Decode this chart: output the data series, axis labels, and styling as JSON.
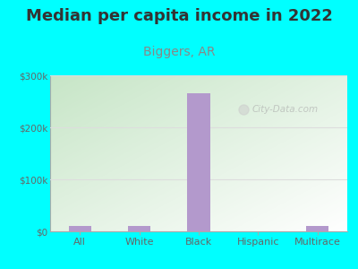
{
  "title": "Median per capita income in 2022",
  "subtitle": "Biggers, AR",
  "categories": [
    "All",
    "White",
    "Black",
    "Hispanic",
    "Multirace"
  ],
  "values": [
    10000,
    10000,
    265000,
    500,
    11000
  ],
  "bar_color": "#b399cc",
  "title_fontsize": 13,
  "subtitle_fontsize": 10,
  "subtitle_color": "#888888",
  "title_color": "#333333",
  "background_color": "#00ffff",
  "plot_bg_tl": "#c8e6c8",
  "plot_bg_tr": "#e8f0e8",
  "plot_bg_bl": "#e0f0e0",
  "plot_bg_br": "#f8fff8",
  "ylabel_ticks": [
    "$0",
    "$100k",
    "$200k",
    "$300k"
  ],
  "ytick_vals": [
    0,
    100000,
    200000,
    300000
  ],
  "ylim": [
    0,
    300000
  ],
  "axis_color": "#aaaaaa",
  "tick_color": "#666666",
  "watermark": "City-Data.com",
  "grid_color": "#dddddd"
}
